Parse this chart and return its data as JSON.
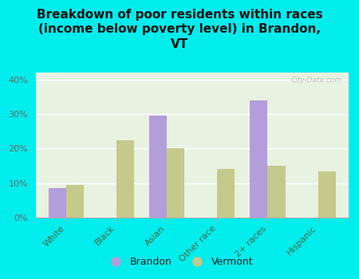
{
  "title": "Breakdown of poor residents within races\n(income below poverty level) in Brandon,\nVT",
  "categories": [
    "White",
    "Black",
    "Asian",
    "Other race",
    "2+ races",
    "Hispanic"
  ],
  "brandon_values": [
    8.5,
    0,
    29.5,
    0,
    34.0,
    0
  ],
  "vermont_values": [
    9.5,
    22.5,
    20.0,
    14.0,
    15.0,
    13.5
  ],
  "brandon_color": "#b39ddb",
  "vermont_color": "#c5c98a",
  "bg_color": "#00eded",
  "plot_bg_gradient_top": "#e8f2e0",
  "plot_bg_gradient_bottom": "#f8fdf4",
  "ylim": [
    0,
    42
  ],
  "yticks": [
    0,
    10,
    20,
    30,
    40
  ],
  "ytick_labels": [
    "0%",
    "10%",
    "20%",
    "30%",
    "40%"
  ],
  "bar_width": 0.35,
  "title_fontsize": 11,
  "tick_fontsize": 8,
  "legend_fontsize": 9,
  "watermark": "City-Data.com",
  "xlabel_color": "#4a6741",
  "ylabel_color": "#666666"
}
